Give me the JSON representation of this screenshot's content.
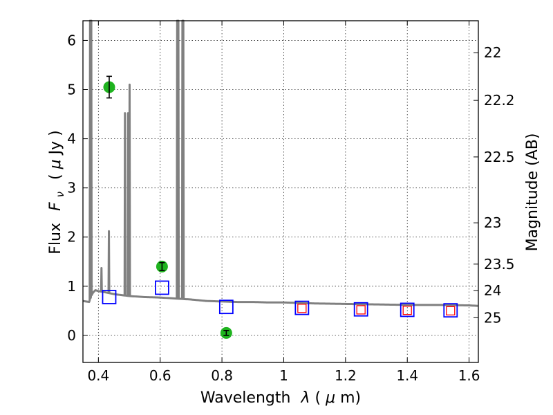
{
  "chart_data": {
    "type": "scatter",
    "title": "",
    "xlabel_text": "Wavelength",
    "xlabel_symbol": "λ",
    "xlabel_unit_open": " (",
    "xlabel_unit_mu": "μ",
    "xlabel_unit_rest": "m)",
    "ylabel_text": "Flux",
    "ylabel_symbol": "F",
    "ylabel_symbol_sub": "ν",
    "ylabel_unit_open": "( ",
    "ylabel_unit_mu": "μ",
    "ylabel_unit_rest": "Jy )",
    "y2label": "Magnitude (AB)",
    "xlim": [
      0.35,
      1.63
    ],
    "ylim": [
      -0.55,
      6.4
    ],
    "grid": true,
    "x_ticks": [
      0.4,
      0.6,
      0.8,
      1.0,
      1.2,
      1.4,
      1.6
    ],
    "x_tick_labels": [
      "0.4",
      "0.6",
      "0.8",
      "1",
      "1.2",
      "1.4",
      "1.6"
    ],
    "y_ticks": [
      0,
      1,
      2,
      3,
      4,
      5,
      6
    ],
    "y_tick_labels": [
      "0",
      "1",
      "2",
      "3",
      "4",
      "5",
      "6"
    ],
    "y2_ticks": [
      {
        "label": "22",
        "flux": 5.75
      },
      {
        "label": "22.2",
        "flux": 4.78
      },
      {
        "label": "22.5",
        "flux": 3.63
      },
      {
        "label": "23",
        "flux": 2.29
      },
      {
        "label": "23.5",
        "flux": 1.45
      },
      {
        "label": "24",
        "flux": 0.91
      },
      {
        "label": "25",
        "flux": 0.36
      }
    ],
    "series": [
      {
        "kind": "model_spectrum",
        "color": "#808080",
        "continuum": [
          [
            0.35,
            0.7
          ],
          [
            0.37,
            0.68
          ],
          [
            0.38,
            0.85
          ],
          [
            0.39,
            0.92
          ],
          [
            0.4,
            0.9
          ],
          [
            0.42,
            0.88
          ],
          [
            0.45,
            0.84
          ],
          [
            0.5,
            0.8
          ],
          [
            0.55,
            0.78
          ],
          [
            0.6,
            0.77
          ],
          [
            0.65,
            0.75
          ],
          [
            0.7,
            0.73
          ],
          [
            0.75,
            0.7
          ],
          [
            0.8,
            0.69
          ],
          [
            0.85,
            0.68
          ],
          [
            0.9,
            0.68
          ],
          [
            0.95,
            0.67
          ],
          [
            1.0,
            0.67
          ],
          [
            1.1,
            0.65
          ],
          [
            1.2,
            0.64
          ],
          [
            1.3,
            0.63
          ],
          [
            1.4,
            0.62
          ],
          [
            1.5,
            0.62
          ],
          [
            1.6,
            0.61
          ],
          [
            1.63,
            0.6
          ]
        ],
        "emission_lines": [
          {
            "x": 0.373,
            "peak": 6.4
          },
          {
            "x": 0.377,
            "peak": 6.4
          },
          {
            "x": 0.41,
            "peak": 1.37
          },
          {
            "x": 0.434,
            "peak": 2.12
          },
          {
            "x": 0.486,
            "peak": 4.52
          },
          {
            "x": 0.496,
            "peak": 4.52
          },
          {
            "x": 0.501,
            "peak": 5.1
          },
          {
            "x": 0.655,
            "peak": 6.4
          },
          {
            "x": 0.659,
            "peak": 6.4
          },
          {
            "x": 0.672,
            "peak": 6.4
          },
          {
            "x": 0.675,
            "peak": 6.4
          }
        ]
      },
      {
        "kind": "observed_photometry",
        "color": "#1fb31f",
        "points": [
          {
            "x": 0.435,
            "y": 5.05,
            "err": 0.22
          },
          {
            "x": 0.606,
            "y": 1.4,
            "err": 0.08
          },
          {
            "x": 0.814,
            "y": 0.05,
            "err": 0.05
          }
        ]
      },
      {
        "kind": "model_photometry",
        "color": "#0000ff",
        "points": [
          {
            "x": 0.435,
            "y": 0.78
          },
          {
            "x": 0.606,
            "y": 0.97
          },
          {
            "x": 0.814,
            "y": 0.58
          },
          {
            "x": 1.059,
            "y": 0.56
          },
          {
            "x": 1.25,
            "y": 0.53
          },
          {
            "x": 1.4,
            "y": 0.52
          },
          {
            "x": 1.54,
            "y": 0.51
          }
        ]
      },
      {
        "kind": "observed_ir",
        "color": "#ff0000",
        "points": [
          {
            "x": 1.059,
            "y": 0.55
          },
          {
            "x": 1.25,
            "y": 0.52
          },
          {
            "x": 1.4,
            "y": 0.51
          },
          {
            "x": 1.54,
            "y": 0.5
          }
        ]
      }
    ]
  }
}
